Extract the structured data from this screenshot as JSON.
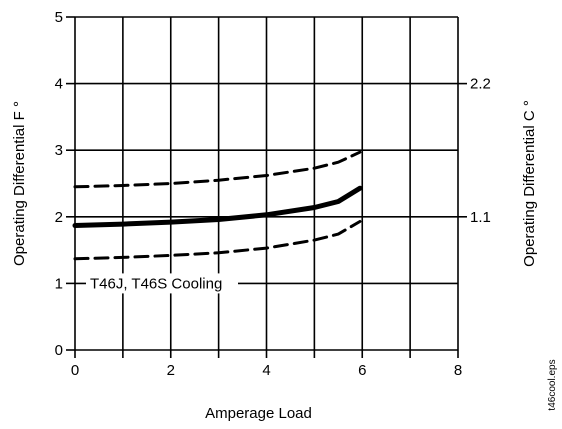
{
  "chart_data": {
    "type": "line",
    "xlabel": "Amperage Load",
    "ylabel": "Operating Differential F °",
    "ylabel_right": "Operating Differential C °",
    "xlim": [
      0,
      8
    ],
    "ylim": [
      0,
      5
    ],
    "x_ticks": [
      "0",
      "2",
      "4",
      "6",
      "8"
    ],
    "y_ticks": [
      "0",
      "1",
      "2",
      "3",
      "4",
      "5"
    ],
    "right_ticks": [
      {
        "label": "1.1",
        "at_f": 2
      },
      {
        "label": "2.2",
        "at_f": 4
      }
    ],
    "grid": true,
    "annotation": "T46J, T46S Cooling",
    "file_label": "t46cool.eps",
    "series": [
      {
        "style": "dashed",
        "x": [
          0,
          1,
          2,
          3,
          4,
          5,
          5.5,
          5.95
        ],
        "y": [
          2.45,
          2.47,
          2.5,
          2.55,
          2.62,
          2.73,
          2.82,
          2.97
        ]
      },
      {
        "style": "solid-bold",
        "x": [
          0,
          1,
          2,
          3,
          4,
          5,
          5.5,
          5.95
        ],
        "y": [
          1.87,
          1.89,
          1.92,
          1.96,
          2.03,
          2.14,
          2.23,
          2.43
        ]
      },
      {
        "style": "dashed",
        "x": [
          0,
          1,
          2,
          3,
          4,
          5,
          5.5,
          5.95
        ],
        "y": [
          1.37,
          1.39,
          1.42,
          1.46,
          1.53,
          1.65,
          1.74,
          1.93
        ]
      }
    ]
  }
}
